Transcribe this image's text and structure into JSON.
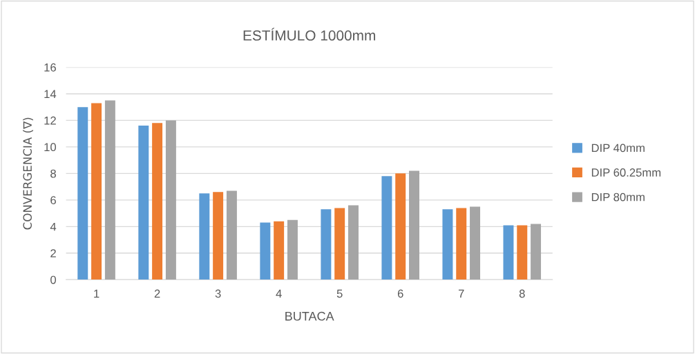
{
  "chart_data": {
    "type": "bar",
    "title": "ESTÍMULO 1000mm",
    "xlabel": "BUTACA",
    "ylabel": "CONVERGENCIA (∇)",
    "categories": [
      "1",
      "2",
      "3",
      "4",
      "5",
      "6",
      "7",
      "8"
    ],
    "series": [
      {
        "name": "DIP 40mm",
        "color": "#5b9bd5",
        "values": [
          13.0,
          11.6,
          6.5,
          4.3,
          5.3,
          7.8,
          5.3,
          4.1
        ]
      },
      {
        "name": "DIP 60.25mm",
        "color": "#ed7d31",
        "values": [
          13.3,
          11.8,
          6.6,
          4.4,
          5.4,
          8.0,
          5.4,
          4.1
        ]
      },
      {
        "name": "DIP 80mm",
        "color": "#a5a5a5",
        "values": [
          13.5,
          12.0,
          6.7,
          4.5,
          5.6,
          8.2,
          5.5,
          4.2
        ]
      }
    ],
    "ylim": [
      0,
      16
    ],
    "yticks": [
      0,
      2,
      4,
      6,
      8,
      10,
      12,
      14,
      16
    ],
    "grid": "y",
    "legend": "right"
  }
}
